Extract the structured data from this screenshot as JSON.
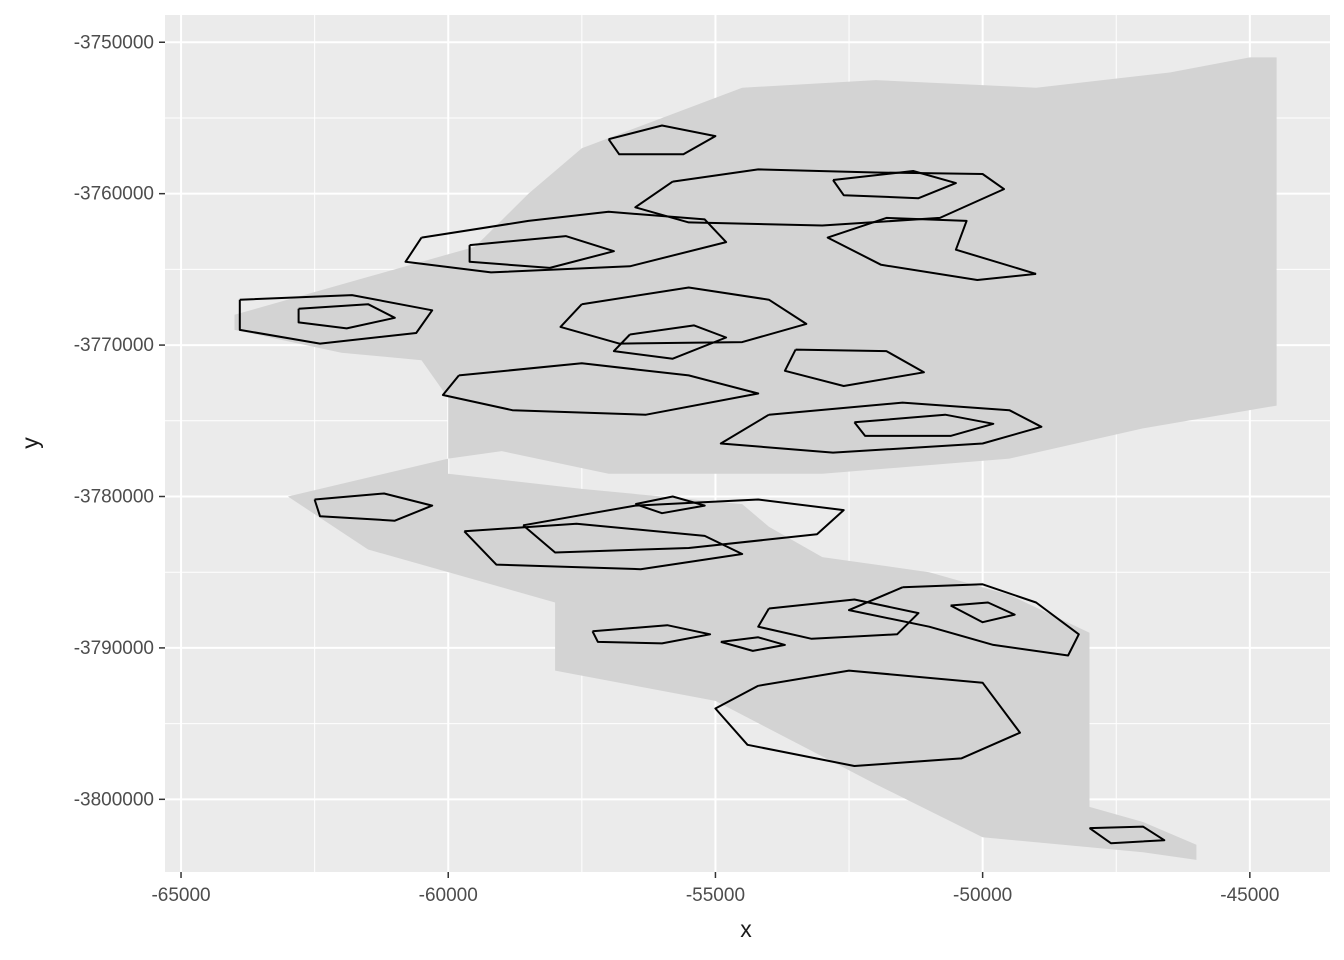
{
  "chart_data": {
    "type": "contour",
    "title": "",
    "xlabel": "x",
    "ylabel": "y",
    "xlim": [
      -65300,
      -43500
    ],
    "ylim": [
      -3804800,
      -3748200
    ],
    "x_ticks": [
      -65000,
      -60000,
      -55000,
      -50000,
      -45000
    ],
    "x_tick_labels": [
      "-65000",
      "-60000",
      "-55000",
      "-50000",
      "-45000"
    ],
    "y_ticks": [
      -3750000,
      -3760000,
      -3770000,
      -3780000,
      -3790000,
      -3800000
    ],
    "y_tick_labels": [
      "-3750000",
      "-3760000",
      "-3770000",
      "-3780000",
      "-3790000",
      "-3800000"
    ],
    "grid": true,
    "panel_background": "#ebebeb",
    "grid_color": "#ffffff",
    "raster_fill": "#d3d3d3",
    "contour_color": "#000000",
    "raster_extent": [
      [
        -64000,
        -3768000
      ],
      [
        -61500,
        -3765500
      ],
      [
        -59500,
        -3763500
      ],
      [
        -58500,
        -3760000
      ],
      [
        -57500,
        -3757000
      ],
      [
        -56000,
        -3755000
      ],
      [
        -54500,
        -3753000
      ],
      [
        -52000,
        -3752500
      ],
      [
        -49000,
        -3753000
      ],
      [
        -46500,
        -3752000
      ],
      [
        -45000,
        -3751000
      ],
      [
        -44500,
        -3751000
      ],
      [
        -44500,
        -3774000
      ],
      [
        -47000,
        -3775500
      ],
      [
        -49500,
        -3777500
      ],
      [
        -53000,
        -3778500
      ],
      [
        -57000,
        -3778500
      ],
      [
        -59000,
        -3777000
      ],
      [
        -60000,
        -3777500
      ],
      [
        -63000,
        -3780000
      ],
      [
        -61500,
        -3783500
      ],
      [
        -58000,
        -3787000
      ],
      [
        -58000,
        -3791500
      ],
      [
        -55000,
        -3793500
      ],
      [
        -52000,
        -3799000
      ],
      [
        -50000,
        -3802500
      ],
      [
        -47000,
        -3803500
      ],
      [
        -46000,
        -3804000
      ],
      [
        -46000,
        -3803000
      ],
      [
        -47000,
        -3801500
      ],
      [
        -48000,
        -3800500
      ],
      [
        -48000,
        -3796000
      ],
      [
        -48000,
        -3791500
      ],
      [
        -48000,
        -3789000
      ],
      [
        -49500,
        -3786500
      ],
      [
        -51000,
        -3785000
      ],
      [
        -53000,
        -3784000
      ],
      [
        -54000,
        -3782000
      ],
      [
        -54500,
        -3780500
      ],
      [
        -57500,
        -3779500
      ],
      [
        -60000,
        -3778500
      ],
      [
        -60000,
        -3773500
      ],
      [
        -60500,
        -3771000
      ],
      [
        -62000,
        -3770500
      ],
      [
        -64000,
        -3769000
      ]
    ],
    "contours": [
      [
        [
          -55800,
          -3759200
        ],
        [
          -54200,
          -3758400
        ],
        [
          -52000,
          -3758600
        ],
        [
          -50000,
          -3758700
        ],
        [
          -49600,
          -3759700
        ],
        [
          -50800,
          -3761600
        ],
        [
          -53000,
          -3762100
        ],
        [
          -55500,
          -3761900
        ],
        [
          -56500,
          -3760900
        ],
        [
          -55800,
          -3759200
        ]
      ],
      [
        [
          -52800,
          -3759100
        ],
        [
          -51300,
          -3758500
        ],
        [
          -50500,
          -3759300
        ],
        [
          -51200,
          -3760300
        ],
        [
          -52600,
          -3760100
        ],
        [
          -52800,
          -3759100
        ]
      ],
      [
        [
          -59600,
          -3763400
        ],
        [
          -57800,
          -3762800
        ],
        [
          -56900,
          -3763800
        ],
        [
          -58100,
          -3764900
        ],
        [
          -59600,
          -3764500
        ],
        [
          -59600,
          -3763400
        ]
      ],
      [
        [
          -60500,
          -3762900
        ],
        [
          -58500,
          -3761800
        ],
        [
          -57000,
          -3761200
        ],
        [
          -55200,
          -3761700
        ],
        [
          -54800,
          -3763200
        ],
        [
          -56600,
          -3764800
        ],
        [
          -59200,
          -3765200
        ],
        [
          -60800,
          -3764500
        ],
        [
          -60500,
          -3762900
        ]
      ],
      [
        [
          -57500,
          -3767300
        ],
        [
          -55500,
          -3766200
        ],
        [
          -54000,
          -3767000
        ],
        [
          -53300,
          -3768600
        ],
        [
          -54500,
          -3769800
        ],
        [
          -56800,
          -3769900
        ],
        [
          -57900,
          -3768800
        ],
        [
          -57500,
          -3767300
        ]
      ],
      [
        [
          -56600,
          -3769300
        ],
        [
          -55400,
          -3768700
        ],
        [
          -54800,
          -3769500
        ],
        [
          -55800,
          -3770900
        ],
        [
          -56900,
          -3770400
        ],
        [
          -56600,
          -3769300
        ]
      ],
      [
        [
          -63900,
          -3767000
        ],
        [
          -61800,
          -3766700
        ],
        [
          -60300,
          -3767700
        ],
        [
          -60600,
          -3769200
        ],
        [
          -62400,
          -3769900
        ],
        [
          -63900,
          -3769000
        ],
        [
          -63900,
          -3767000
        ]
      ],
      [
        [
          -62800,
          -3767600
        ],
        [
          -61500,
          -3767300
        ],
        [
          -61000,
          -3768200
        ],
        [
          -61900,
          -3768900
        ],
        [
          -62800,
          -3768500
        ],
        [
          -62800,
          -3767600
        ]
      ],
      [
        [
          -57000,
          -3756400
        ],
        [
          -56000,
          -3755500
        ],
        [
          -55000,
          -3756200
        ],
        [
          -55600,
          -3757400
        ],
        [
          -56800,
          -3757400
        ],
        [
          -57000,
          -3756400
        ]
      ],
      [
        [
          -54000,
          -3774600
        ],
        [
          -51500,
          -3773800
        ],
        [
          -49500,
          -3774300
        ],
        [
          -48900,
          -3775400
        ],
        [
          -50000,
          -3776500
        ],
        [
          -52800,
          -3777100
        ],
        [
          -54900,
          -3776500
        ],
        [
          -54000,
          -3774600
        ]
      ],
      [
        [
          -52400,
          -3775100
        ],
        [
          -50700,
          -3774600
        ],
        [
          -49800,
          -3775200
        ],
        [
          -50600,
          -3776000
        ],
        [
          -52200,
          -3776000
        ],
        [
          -52400,
          -3775100
        ]
      ],
      [
        [
          -59800,
          -3772000
        ],
        [
          -57500,
          -3771200
        ],
        [
          -55500,
          -3772000
        ],
        [
          -54200,
          -3773200
        ],
        [
          -56300,
          -3774600
        ],
        [
          -58800,
          -3774300
        ],
        [
          -60100,
          -3773300
        ],
        [
          -59800,
          -3772000
        ]
      ],
      [
        [
          -53500,
          -3770300
        ],
        [
          -51800,
          -3770400
        ],
        [
          -51100,
          -3771800
        ],
        [
          -52600,
          -3772700
        ],
        [
          -53700,
          -3771700
        ],
        [
          -53500,
          -3770300
        ]
      ],
      [
        [
          -58600,
          -3781900
        ],
        [
          -56500,
          -3780600
        ],
        [
          -54200,
          -3780200
        ],
        [
          -52600,
          -3780900
        ],
        [
          -53100,
          -3782500
        ],
        [
          -55500,
          -3783400
        ],
        [
          -58000,
          -3783700
        ],
        [
          -58600,
          -3781900
        ]
      ],
      [
        [
          -59700,
          -3782300
        ],
        [
          -57600,
          -3781800
        ],
        [
          -55200,
          -3782600
        ],
        [
          -54500,
          -3783800
        ],
        [
          -56400,
          -3784800
        ],
        [
          -59100,
          -3784500
        ],
        [
          -59700,
          -3782300
        ]
      ],
      [
        [
          -56500,
          -3780500
        ],
        [
          -55800,
          -3780000
        ],
        [
          -55200,
          -3780600
        ],
        [
          -56000,
          -3781100
        ],
        [
          -56500,
          -3780500
        ]
      ],
      [
        [
          -51500,
          -3786000
        ],
        [
          -50000,
          -3785800
        ],
        [
          -49000,
          -3787000
        ],
        [
          -48200,
          -3789100
        ],
        [
          -48400,
          -3790500
        ],
        [
          -49800,
          -3789800
        ],
        [
          -51000,
          -3788600
        ],
        [
          -52500,
          -3787500
        ],
        [
          -51500,
          -3786000
        ]
      ],
      [
        [
          -50600,
          -3787200
        ],
        [
          -49900,
          -3787000
        ],
        [
          -49400,
          -3787800
        ],
        [
          -50000,
          -3788300
        ],
        [
          -50600,
          -3787200
        ]
      ],
      [
        [
          -54000,
          -3787400
        ],
        [
          -52400,
          -3786800
        ],
        [
          -51200,
          -3787700
        ],
        [
          -51600,
          -3789100
        ],
        [
          -53200,
          -3789400
        ],
        [
          -54200,
          -3788600
        ],
        [
          -54000,
          -3787400
        ]
      ],
      [
        [
          -62500,
          -3780200
        ],
        [
          -61200,
          -3779800
        ],
        [
          -60300,
          -3780600
        ],
        [
          -61000,
          -3781600
        ],
        [
          -62400,
          -3781300
        ],
        [
          -62500,
          -3780200
        ]
      ],
      [
        [
          -57300,
          -3788900
        ],
        [
          -55900,
          -3788500
        ],
        [
          -55100,
          -3789100
        ],
        [
          -56000,
          -3789700
        ],
        [
          -57200,
          -3789600
        ],
        [
          -57300,
          -3788900
        ]
      ],
      [
        [
          -54900,
          -3789600
        ],
        [
          -54200,
          -3789300
        ],
        [
          -53700,
          -3789800
        ],
        [
          -54300,
          -3790200
        ],
        [
          -54900,
          -3789600
        ]
      ],
      [
        [
          -48000,
          -3801900
        ],
        [
          -47000,
          -3801800
        ],
        [
          -46600,
          -3802700
        ],
        [
          -47600,
          -3802900
        ],
        [
          -48000,
          -3801900
        ]
      ],
      [
        [
          -54200,
          -3792500
        ],
        [
          -52500,
          -3791500
        ],
        [
          -50000,
          -3792300
        ],
        [
          -49300,
          -3795600
        ],
        [
          -50400,
          -3797300
        ],
        [
          -52400,
          -3797800
        ],
        [
          -54400,
          -3796400
        ],
        [
          -55000,
          -3794000
        ],
        [
          -54200,
          -3792500
        ]
      ],
      [
        [
          -49000,
          -3765300
        ],
        [
          -50500,
          -3763700
        ],
        [
          -50300,
          -3761800
        ],
        [
          -51800,
          -3761600
        ],
        [
          -52900,
          -3762900
        ],
        [
          -51900,
          -3764700
        ],
        [
          -50100,
          -3765700
        ],
        [
          -49000,
          -3765300
        ]
      ]
    ]
  }
}
